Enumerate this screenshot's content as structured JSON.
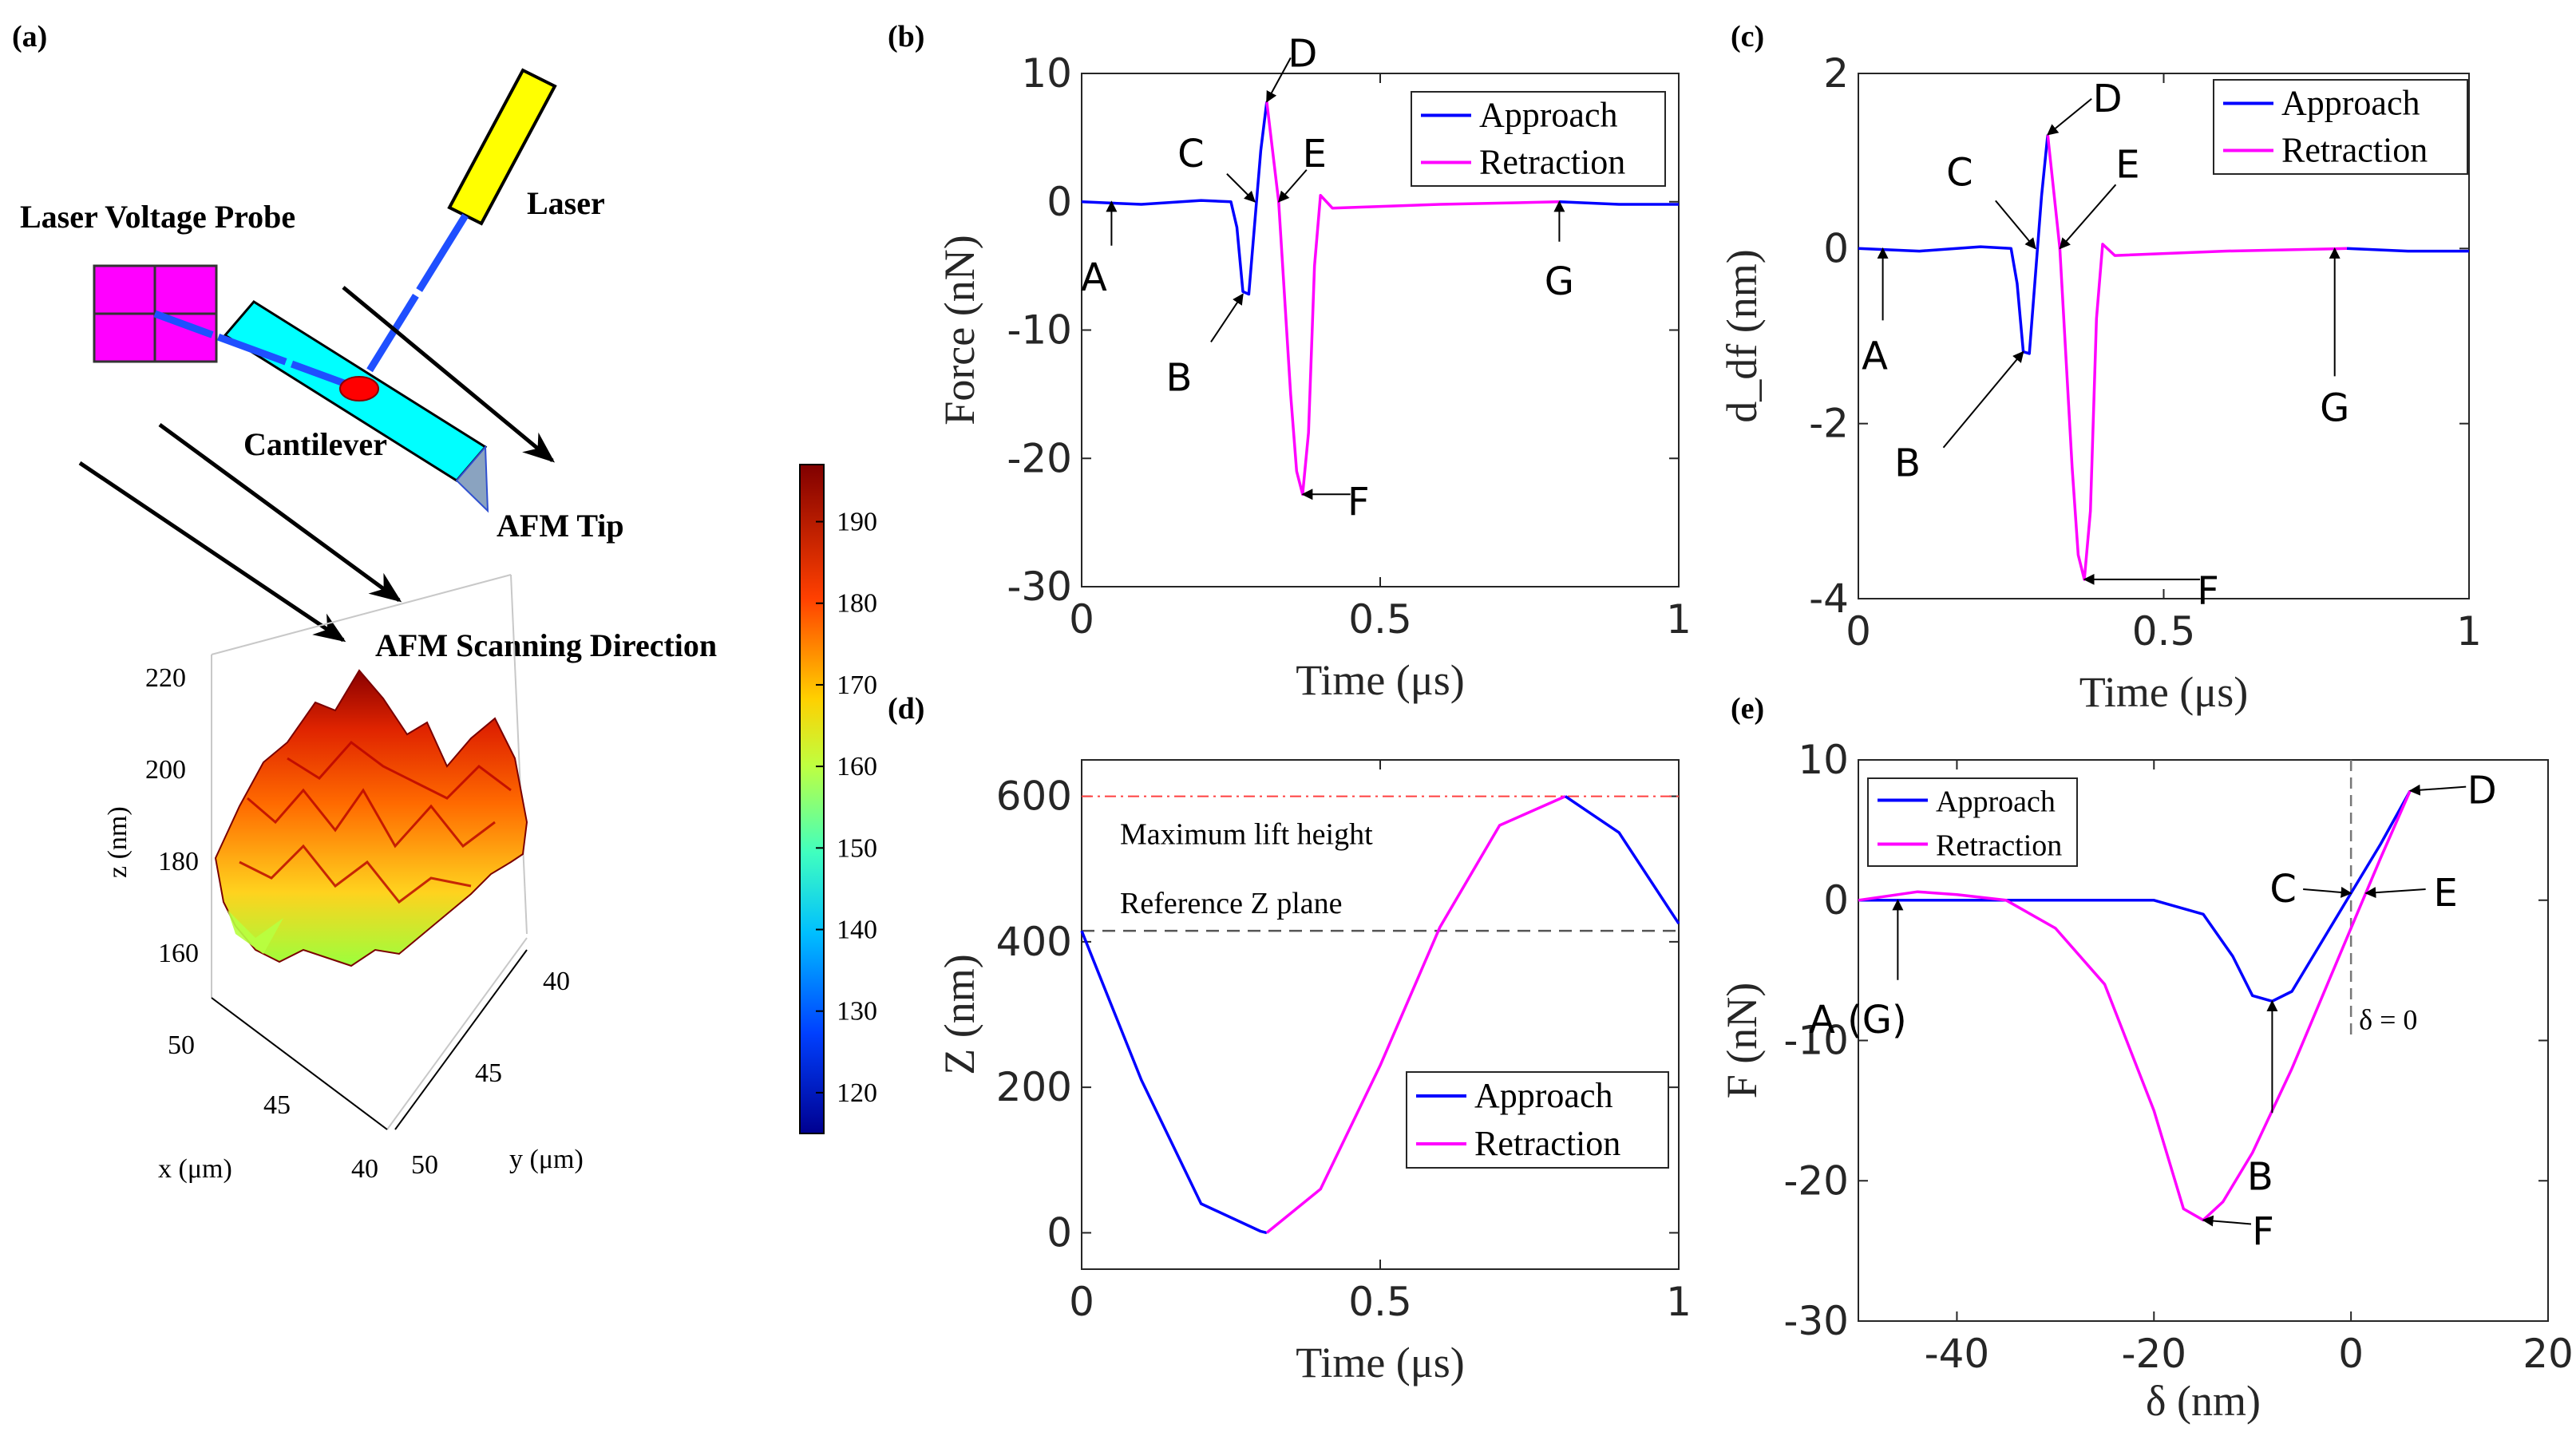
{
  "panels": {
    "a": "(a)",
    "b": "(b)",
    "c": "(c)",
    "d": "(d)",
    "e": "(e)"
  },
  "setup": {
    "laser_voltage_probe": "Laser Voltage Probe",
    "laser": "Laser",
    "cantilever": "Cantilever",
    "afm_tip": "AFM Tip",
    "scan_direction": "AFM Scanning Direction",
    "z_label": "z (nm)",
    "x_label": "x (μm)",
    "y_label": "y (μm)",
    "z_ticks": [
      "220",
      "200",
      "180",
      "160"
    ],
    "x_ticks": [
      "50",
      "45",
      "40"
    ],
    "y_ticks": [
      "40",
      "45",
      "50"
    ],
    "colorbar_ticks": [
      "190",
      "180",
      "170",
      "160",
      "150",
      "140",
      "130",
      "120"
    ],
    "colorbar_range": [
      115,
      197
    ]
  },
  "colors": {
    "approach": "#0000ff",
    "retraction": "#ff00ff",
    "surface_hot": "#b00000",
    "surface_mid": "#ff6600",
    "laser_body": "#ffff00",
    "cantilever": "#00ffff",
    "probe": "#ff00ff"
  },
  "chart_data": [
    {
      "id": "b",
      "type": "line",
      "xlabel": "Time (μs)",
      "ylabel": "Force (nN)",
      "xlim": [
        0,
        1
      ],
      "ylim": [
        -30,
        10
      ],
      "xticks": [
        "0",
        "0.5",
        "1"
      ],
      "yticks": [
        "10",
        "0",
        "-10",
        "-20",
        "-30"
      ],
      "legend": [
        "Approach",
        "Retraction"
      ],
      "series": [
        {
          "name": "Approach",
          "x": [
            0,
            0.1,
            0.2,
            0.25,
            0.26,
            0.27,
            0.28,
            0.3,
            0.31
          ],
          "y": [
            0,
            -0.2,
            0.1,
            0,
            -2,
            -7,
            -7.2,
            4,
            7.8
          ]
        },
        {
          "name": "Retraction",
          "x": [
            0.31,
            0.33,
            0.35,
            0.36,
            0.37,
            0.38,
            0.39,
            0.4,
            0.42,
            0.6,
            0.8
          ],
          "y": [
            7.8,
            0,
            -15,
            -21,
            -22.8,
            -18,
            -5,
            0.5,
            -0.5,
            -0.2,
            0
          ]
        },
        {
          "name": "Approach",
          "x": [
            0.8,
            0.9,
            1
          ],
          "y": [
            0,
            -0.2,
            -0.2
          ]
        }
      ],
      "points": [
        {
          "label": "A",
          "x": 0.05,
          "y": 0
        },
        {
          "label": "B",
          "x": 0.27,
          "y": -7.2
        },
        {
          "label": "C",
          "x": 0.29,
          "y": 0
        },
        {
          "label": "D",
          "x": 0.31,
          "y": 7.8
        },
        {
          "label": "E",
          "x": 0.33,
          "y": 0
        },
        {
          "label": "F",
          "x": 0.37,
          "y": -22.8
        },
        {
          "label": "G",
          "x": 0.8,
          "y": 0
        }
      ]
    },
    {
      "id": "c",
      "type": "line",
      "xlabel": "Time (μs)",
      "ylabel": "d_df (nm)",
      "xlim": [
        0,
        1
      ],
      "ylim": [
        -4,
        2
      ],
      "xticks": [
        "0",
        "0.5",
        "1"
      ],
      "yticks": [
        "2",
        "0",
        "-2",
        "-4"
      ],
      "legend": [
        "Approach",
        "Retraction"
      ],
      "series": [
        {
          "name": "Approach",
          "x": [
            0,
            0.1,
            0.2,
            0.25,
            0.26,
            0.27,
            0.28,
            0.3,
            0.31
          ],
          "y": [
            0,
            -0.03,
            0.02,
            0,
            -0.4,
            -1.18,
            -1.2,
            0.6,
            1.3
          ]
        },
        {
          "name": "Retraction",
          "x": [
            0.31,
            0.33,
            0.35,
            0.36,
            0.37,
            0.38,
            0.39,
            0.4,
            0.42,
            0.6,
            0.8
          ],
          "y": [
            1.3,
            0,
            -2.5,
            -3.5,
            -3.78,
            -3,
            -0.8,
            0.05,
            -0.08,
            -0.03,
            0
          ]
        },
        {
          "name": "Approach",
          "x": [
            0.8,
            0.9,
            1
          ],
          "y": [
            0,
            -0.03,
            -0.03
          ]
        }
      ],
      "points": [
        {
          "label": "A",
          "x": 0.04,
          "y": 0
        },
        {
          "label": "B",
          "x": 0.27,
          "y": -1.18
        },
        {
          "label": "C",
          "x": 0.29,
          "y": 0
        },
        {
          "label": "D",
          "x": 0.31,
          "y": 1.3
        },
        {
          "label": "E",
          "x": 0.33,
          "y": 0
        },
        {
          "label": "F",
          "x": 0.37,
          "y": -3.78
        },
        {
          "label": "G",
          "x": 0.78,
          "y": 0
        }
      ]
    },
    {
      "id": "d",
      "type": "line",
      "xlabel": "Time (μs)",
      "ylabel": "Z (nm)",
      "xlim": [
        0,
        1
      ],
      "ylim": [
        -50,
        650
      ],
      "xticks": [
        "0",
        "0.5",
        "1"
      ],
      "yticks": [
        "600",
        "400",
        "200",
        "0"
      ],
      "legend": [
        "Approach",
        "Retraction"
      ],
      "reference_lines": [
        {
          "label": "Maximum lift height",
          "y": 600
        },
        {
          "label": "Reference Z plane",
          "y": 415
        }
      ],
      "series": [
        {
          "name": "Approach",
          "x": [
            0,
            0.1,
            0.2,
            0.3,
            0.31
          ],
          "y": [
            415,
            210,
            40,
            2,
            0
          ]
        },
        {
          "name": "Retraction",
          "x": [
            0.31,
            0.4,
            0.5,
            0.6,
            0.7,
            0.81
          ],
          "y": [
            0,
            60,
            230,
            420,
            560,
            600
          ]
        },
        {
          "name": "Approach",
          "x": [
            0.81,
            0.9,
            1
          ],
          "y": [
            600,
            550,
            425
          ]
        }
      ]
    },
    {
      "id": "e",
      "type": "line",
      "xlabel": "δ (nm)",
      "ylabel": "F (nN)",
      "xlim": [
        -50,
        20
      ],
      "ylim": [
        -30,
        10
      ],
      "xticks": [
        "-40",
        "-20",
        "0",
        "20"
      ],
      "yticks": [
        "10",
        "0",
        "-10",
        "-20",
        "-30"
      ],
      "legend": [
        "Approach",
        "Retraction"
      ],
      "annotation": "δ = 0",
      "series": [
        {
          "name": "Approach",
          "x": [
            -50,
            -40,
            -30,
            -20,
            -15,
            -12,
            -10,
            -8,
            -6,
            -3,
            0,
            3,
            6
          ],
          "y": [
            0,
            0,
            0,
            0,
            -1,
            -4,
            -6.8,
            -7.2,
            -6.5,
            -3,
            0.5,
            4,
            7.8
          ]
        },
        {
          "name": "Retraction",
          "x": [
            6,
            3,
            0,
            -3,
            -6,
            -10,
            -13,
            -15,
            -17,
            -20,
            -25,
            -30,
            -35,
            -40,
            -44,
            -50
          ],
          "y": [
            7.8,
            3,
            -2,
            -7,
            -12,
            -18,
            -21.5,
            -22.8,
            -22,
            -15,
            -6,
            -2,
            0,
            0.4,
            0.6,
            0
          ]
        }
      ],
      "points": [
        {
          "label": "A (G)",
          "x": -46,
          "y": 0
        },
        {
          "label": "B",
          "x": -8,
          "y": -7.2
        },
        {
          "label": "C",
          "x": 0,
          "y": 0.5
        },
        {
          "label": "D",
          "x": 6,
          "y": 7.8
        },
        {
          "label": "E",
          "x": 1.5,
          "y": 0.5
        },
        {
          "label": "F",
          "x": -15,
          "y": -22.8
        }
      ]
    }
  ]
}
